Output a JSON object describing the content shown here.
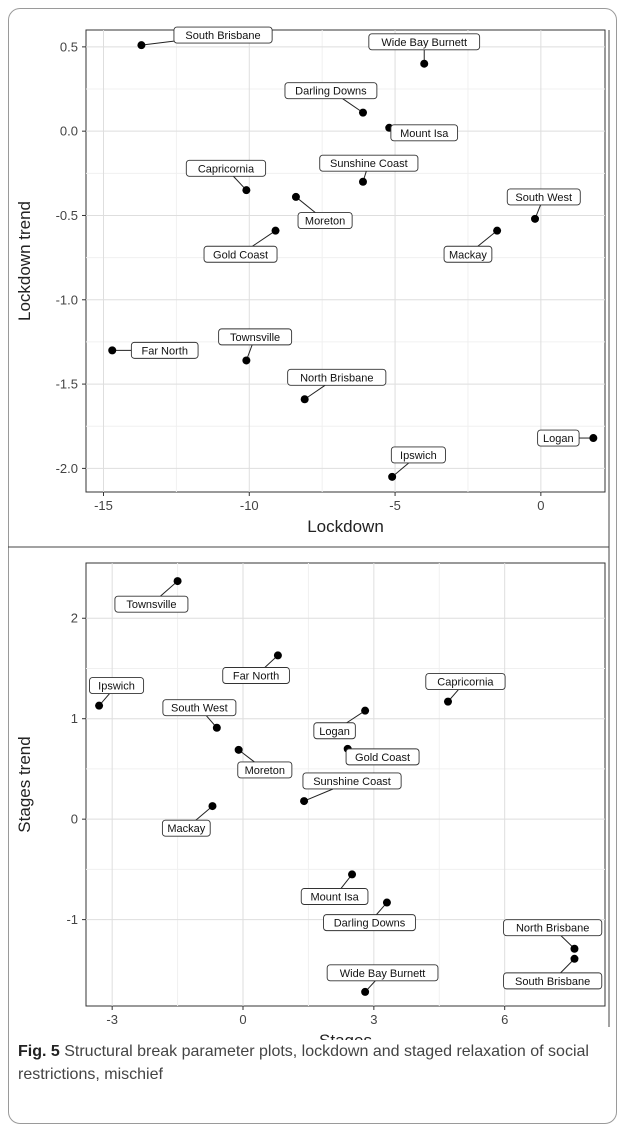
{
  "caption": {
    "label": "Fig. 5",
    "text": "Structural break parameter plots, lockdown and staged relaxation of social restrictions, mischief"
  },
  "chart_data": [
    {
      "type": "scatter",
      "xlabel": "Lockdown",
      "ylabel": "Lockdown trend",
      "xlim": [
        -15.6,
        2.2
      ],
      "ylim": [
        -2.14,
        0.6
      ],
      "xticks": [
        -15,
        -10,
        -5,
        0
      ],
      "yticks": [
        -2.0,
        -1.5,
        -1.0,
        -0.5,
        0.0,
        0.5
      ],
      "xtick_labels": [
        "-15",
        "-10",
        "-5",
        "0"
      ],
      "ytick_labels": [
        "-2.0",
        "-1.5",
        "-1.0",
        "-0.5",
        "0.0",
        "0.5"
      ],
      "grid": true,
      "points": [
        {
          "label": "South Brisbane",
          "x": -13.7,
          "y": 0.51,
          "lx": -10.9,
          "ly": 0.57
        },
        {
          "label": "Wide Bay Burnett",
          "x": -4.0,
          "y": 0.4,
          "lx": -4.0,
          "ly": 0.53
        },
        {
          "label": "Darling Downs",
          "x": -6.1,
          "y": 0.11,
          "lx": -7.2,
          "ly": 0.24
        },
        {
          "label": "Mount Isa",
          "x": -5.2,
          "y": 0.02,
          "lx": -4.0,
          "ly": -0.01
        },
        {
          "label": "Sunshine Coast",
          "x": -6.1,
          "y": -0.3,
          "lx": -5.9,
          "ly": -0.19
        },
        {
          "label": "Capricornia",
          "x": -10.1,
          "y": -0.35,
          "lx": -10.8,
          "ly": -0.22
        },
        {
          "label": "Moreton",
          "x": -8.4,
          "y": -0.39,
          "lx": -7.4,
          "ly": -0.53
        },
        {
          "label": "South West",
          "x": -0.2,
          "y": -0.52,
          "lx": 0.1,
          "ly": -0.39
        },
        {
          "label": "Mackay",
          "x": -1.5,
          "y": -0.59,
          "lx": -2.5,
          "ly": -0.73
        },
        {
          "label": "Gold Coast",
          "x": -9.1,
          "y": -0.59,
          "lx": -10.3,
          "ly": -0.73
        },
        {
          "label": "Far North",
          "x": -14.7,
          "y": -1.3,
          "lx": -12.9,
          "ly": -1.3
        },
        {
          "label": "Townsville",
          "x": -10.1,
          "y": -1.36,
          "lx": -9.8,
          "ly": -1.22
        },
        {
          "label": "North Brisbane",
          "x": -8.1,
          "y": -1.59,
          "lx": -7.0,
          "ly": -1.46
        },
        {
          "label": "Logan",
          "x": 1.8,
          "y": -1.82,
          "lx": 0.6,
          "ly": -1.82
        },
        {
          "label": "Ipswich",
          "x": -5.1,
          "y": -2.05,
          "lx": -4.2,
          "ly": -1.92
        }
      ]
    },
    {
      "type": "scatter",
      "xlabel": "Stages",
      "ylabel": "Stages trend",
      "xlim": [
        -3.6,
        8.3
      ],
      "ylim": [
        -1.86,
        2.55
      ],
      "xticks": [
        -3,
        0,
        3,
        6
      ],
      "yticks": [
        -1,
        0,
        1,
        2
      ],
      "xtick_labels": [
        "-3",
        "0",
        "3",
        "6"
      ],
      "ytick_labels": [
        "-1",
        "0",
        "1",
        "2"
      ],
      "grid": true,
      "points": [
        {
          "label": "Townsville",
          "x": -1.5,
          "y": 2.37,
          "lx": -2.1,
          "ly": 2.14
        },
        {
          "label": "Far North",
          "x": 0.8,
          "y": 1.63,
          "lx": 0.3,
          "ly": 1.43
        },
        {
          "label": "Ipswich",
          "x": -3.3,
          "y": 1.13,
          "lx": -2.9,
          "ly": 1.33
        },
        {
          "label": "Capricornia",
          "x": 4.7,
          "y": 1.17,
          "lx": 5.1,
          "ly": 1.37
        },
        {
          "label": "South West",
          "x": -0.6,
          "y": 0.91,
          "lx": -1.0,
          "ly": 1.11
        },
        {
          "label": "Logan",
          "x": 2.8,
          "y": 1.08,
          "lx": 2.1,
          "ly": 0.88
        },
        {
          "label": "Moreton",
          "x": -0.1,
          "y": 0.69,
          "lx": 0.5,
          "ly": 0.49
        },
        {
          "label": "Gold Coast",
          "x": 2.4,
          "y": 0.7,
          "lx": 3.2,
          "ly": 0.62
        },
        {
          "label": "Sunshine Coast",
          "x": 1.4,
          "y": 0.18,
          "lx": 2.5,
          "ly": 0.38
        },
        {
          "label": "Mackay",
          "x": -0.7,
          "y": 0.13,
          "lx": -1.3,
          "ly": -0.09
        },
        {
          "label": "Mount Isa",
          "x": 2.5,
          "y": -0.55,
          "lx": 2.1,
          "ly": -0.77
        },
        {
          "label": "Darling Downs",
          "x": 3.3,
          "y": -0.83,
          "lx": 2.9,
          "ly": -1.03
        },
        {
          "label": "Wide Bay Burnett",
          "x": 2.8,
          "y": -1.72,
          "lx": 3.2,
          "ly": -1.53
        },
        {
          "label": "North Brisbane",
          "x": 7.6,
          "y": -1.29,
          "lx": 7.1,
          "ly": -1.08
        },
        {
          "label": "South Brisbane",
          "x": 7.6,
          "y": -1.39,
          "lx": 7.1,
          "ly": -1.61
        }
      ]
    }
  ]
}
